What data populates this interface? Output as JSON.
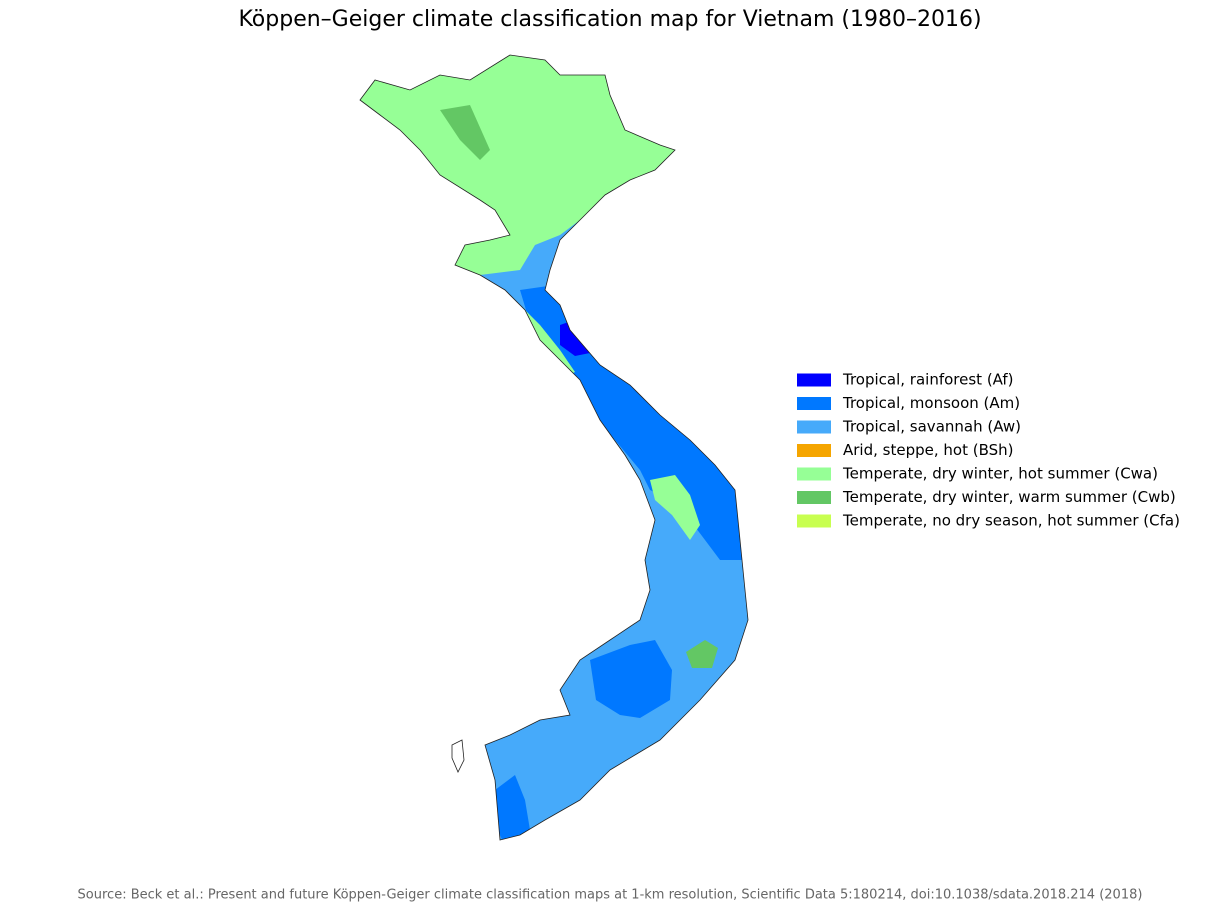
{
  "title": "Köppen–Geiger climate classification map for Vietnam (1980–2016)",
  "legend": [
    {
      "label": "Tropical, rainforest (Af)",
      "color": "#0000ff"
    },
    {
      "label": "Tropical, monsoon (Am)",
      "color": "#0078ff"
    },
    {
      "label": "Tropical, savannah (Aw)",
      "color": "#46aafa"
    },
    {
      "label": "Arid, steppe, hot (BSh)",
      "color": "#f5a500"
    },
    {
      "label": "Temperate, dry winter, hot summer (Cwa)",
      "color": "#96ff96"
    },
    {
      "label": "Temperate, dry winter, warm summer (Cwb)",
      "color": "#63c764"
    },
    {
      "label": "Temperate, no dry season, hot summer (Cfa)",
      "color": "#c8ff50"
    }
  ],
  "source": "Source: Beck et al.: Present and future Köppen-Geiger climate classification maps at 1-km resolution, Scientific Data 5:180214, doi:10.1038/sdata.2018.214 (2018)"
}
